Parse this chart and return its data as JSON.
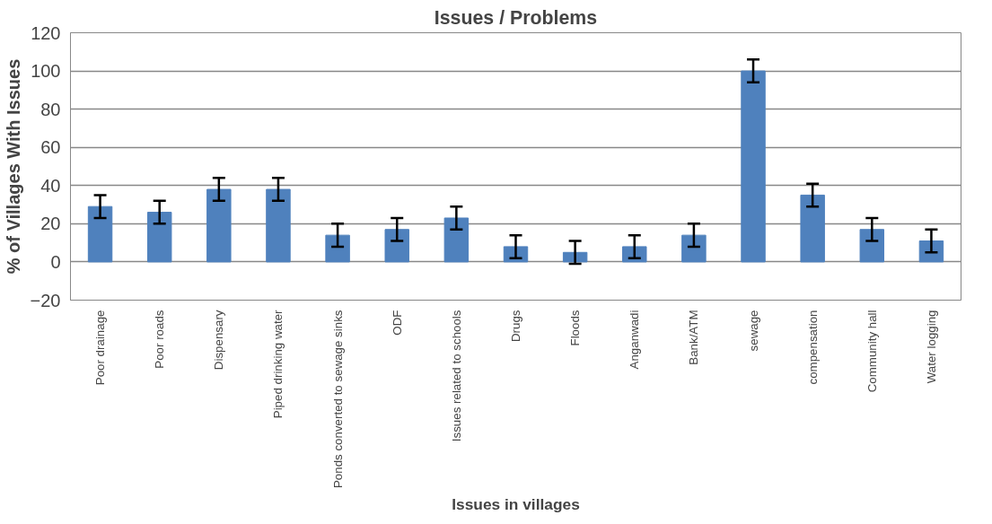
{
  "chart_data": {
    "type": "bar",
    "title": "Issues / Problems",
    "xlabel": "Issues in villages",
    "ylabel": "% of Villages With Issues",
    "categories": [
      "Poor drainage",
      "Poor roads",
      "Dispensary",
      "Piped drinking water",
      "Ponds converted to sewage sinks",
      "ODF",
      "Issues related to schools",
      "Drugs",
      "Floods",
      "Anganwadi",
      "Bank/ATM",
      "sewage",
      "compensation",
      "Community hall",
      "Water logging"
    ],
    "values": [
      29,
      26,
      38,
      38,
      14,
      17,
      23,
      8,
      5,
      8,
      14,
      100,
      35,
      17,
      11
    ],
    "errors": [
      6,
      6,
      6,
      6,
      6,
      6,
      6,
      6,
      6,
      6,
      6,
      6,
      6,
      6,
      6
    ],
    "color": "#4f81bd",
    "ylim": [
      -20,
      120
    ],
    "yticks": [
      -20,
      0,
      20,
      40,
      60,
      80,
      100,
      120
    ],
    "grid": "y"
  }
}
